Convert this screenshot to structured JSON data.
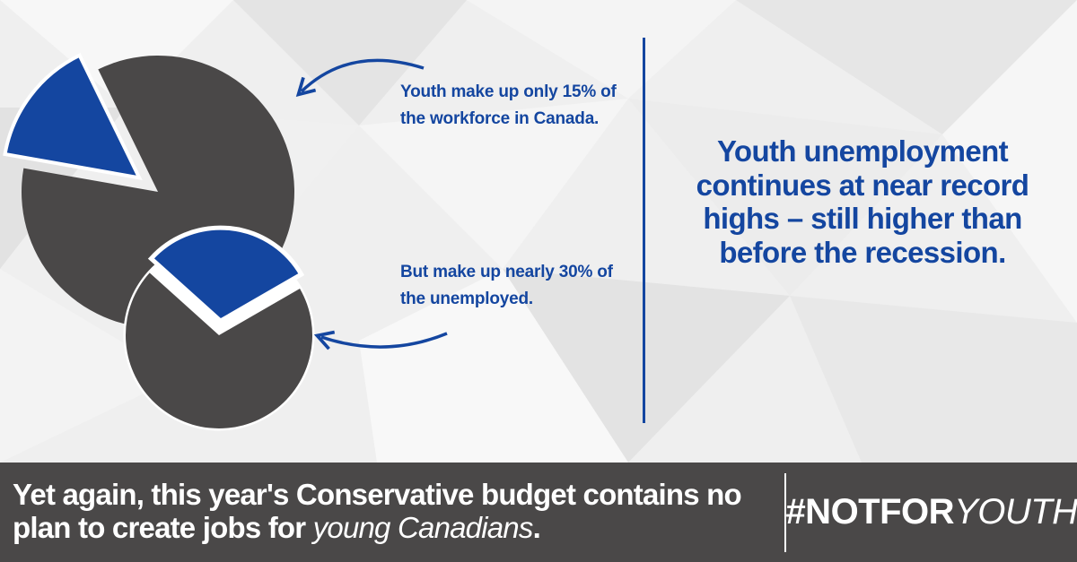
{
  "colors": {
    "brand_blue": "#1446a0",
    "pie_dark": "#4a4848",
    "footer_bg": "#4a4848",
    "text_white": "#ffffff"
  },
  "callouts": {
    "workforce": "Youth make up only 15% of the workforce in Canada.",
    "unemployed": "But make up nearly 30% of the unemployed."
  },
  "headline": "Youth unemployment continues at near record highs – still higher than before the recession.",
  "footer": {
    "message_main": "Yet again, this year's Conservative budget contains no plan to create jobs for ",
    "message_emphasis": "young Canadians",
    "message_end": ".",
    "hashtag_main": "#NOTFOR",
    "hashtag_emphasis": "YOUTH"
  },
  "chart_data": [
    {
      "type": "pie",
      "title": "",
      "slices": [
        {
          "name": "",
          "value": 15,
          "color": "#1446a0",
          "exploded": true
        },
        {
          "name": "",
          "value": 85,
          "color": "#4a4848"
        }
      ]
    },
    {
      "type": "pie",
      "title": "",
      "slices": [
        {
          "name": "",
          "value": 30,
          "color": "#1446a0",
          "exploded": true
        },
        {
          "name": "",
          "value": 70,
          "color": "#4a4848"
        }
      ]
    }
  ]
}
